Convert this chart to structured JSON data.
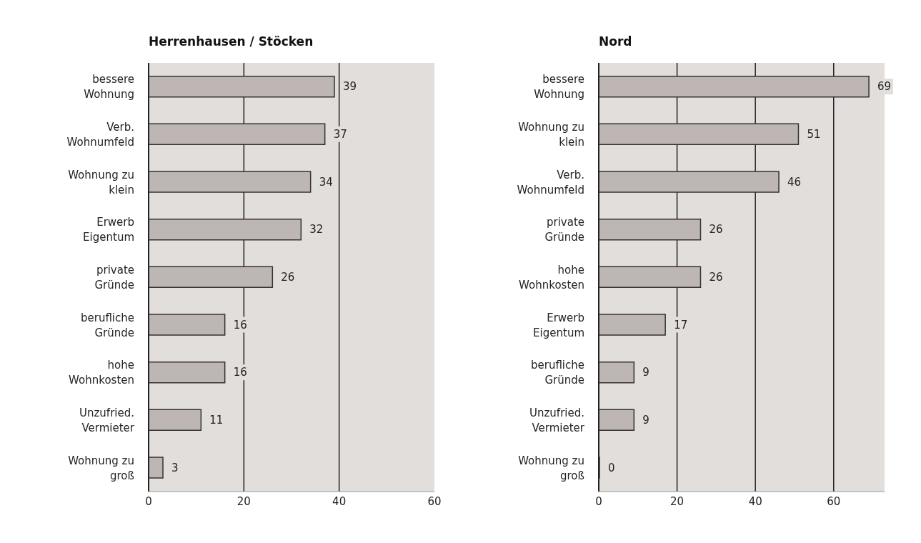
{
  "chart_data": [
    {
      "type": "bar",
      "orientation": "horizontal",
      "title": "Herrenhausen / Stöcken",
      "categories": [
        "bessere\nWohnung",
        "Verb.\nWohnumfeld",
        "Wohnung zu\nklein",
        "Erwerb\nEigentum",
        "private\nGründe",
        "berufliche\nGründe",
        "hohe\nWohnkosten",
        "Unzufried.\nVermieter",
        "Wohnung zu\ngroß"
      ],
      "values": [
        39,
        37,
        34,
        32,
        26,
        16,
        16,
        11,
        3
      ],
      "color": "#bdb6b4",
      "xlim": [
        0,
        60
      ],
      "xticks": [
        0,
        20,
        40,
        60
      ],
      "grid": "x",
      "data_labels": true
    },
    {
      "type": "bar",
      "orientation": "horizontal",
      "title": "Nord",
      "categories": [
        "bessere\nWohnung",
        "Wohnung zu\nklein",
        "Verb.\nWohnumfeld",
        "private\nGründe",
        "hohe\nWohnkosten",
        "Erwerb\nEigentum",
        "berufliche\nGründe",
        "Unzufried.\nVermieter",
        "Wohnung zu\ngroß"
      ],
      "values": [
        69,
        51,
        46,
        26,
        26,
        17,
        9,
        9,
        0
      ],
      "color": "#bdb6b4",
      "xlim": [
        0,
        73
      ],
      "xticks": [
        0,
        20,
        40,
        60
      ],
      "grid": "x",
      "data_labels": true
    }
  ]
}
